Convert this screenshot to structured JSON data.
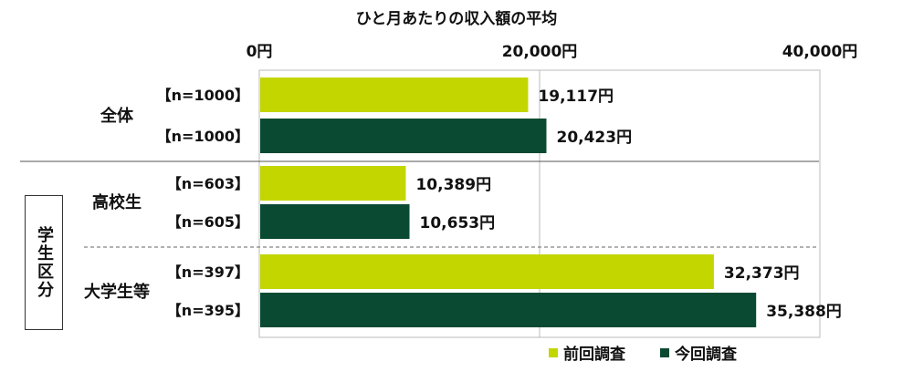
{
  "chart_data": {
    "type": "bar",
    "orientation": "horizontal",
    "title": "ひと月あたりの収入額の平均",
    "xlim": [
      0,
      40000
    ],
    "x_ticks": [
      "0円",
      "20,000円",
      "40,000円"
    ],
    "side_label": "学生区分",
    "groups": [
      {
        "name": "全体",
        "bars": [
          {
            "series": "前回調査",
            "n_label": "【n=1000】",
            "value": 19117,
            "value_label": "19,117円"
          },
          {
            "series": "今回調査",
            "n_label": "【n=1000】",
            "value": 20423,
            "value_label": "20,423円"
          }
        ]
      },
      {
        "name": "高校生",
        "bars": [
          {
            "series": "前回調査",
            "n_label": "【n=603】",
            "value": 10389,
            "value_label": "10,389円"
          },
          {
            "series": "今回調査",
            "n_label": "【n=605】",
            "value": 10653,
            "value_label": "10,653円"
          }
        ]
      },
      {
        "name": "大学生等",
        "bars": [
          {
            "series": "前回調査",
            "n_label": "【n=397】",
            "value": 32373,
            "value_label": "32,373円"
          },
          {
            "series": "今回調査",
            "n_label": "【n=395】",
            "value": 35388,
            "value_label": "35,388円"
          }
        ]
      }
    ],
    "series": [
      {
        "name": "前回調査",
        "color": "#c3d600"
      },
      {
        "name": "今回調査",
        "color": "#0b4a32"
      }
    ],
    "grid": true,
    "legend_position": "bottom-right"
  }
}
